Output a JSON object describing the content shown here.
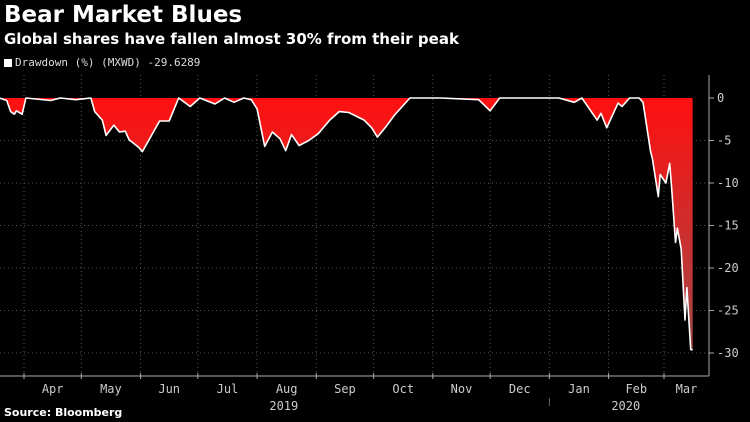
{
  "title": "Bear Market Blues",
  "subtitle": "Global shares have fallen almost 30% from their peak",
  "source": "Source: Bloomberg",
  "chart_data": {
    "type": "area",
    "legend": {
      "label": "Drawdown (%) (MXWD) -29.6289",
      "color": "#ffffff",
      "position": "top-left"
    },
    "series": [
      {
        "name": "Drawdown (%) (MXWD)",
        "fill_color_top": "#ff1010",
        "fill_color_bottom": "#a04848",
        "line_color": "#ffffff",
        "points": [
          [
            "2019-03-19",
            0
          ],
          [
            "2019-03-23",
            -0.3
          ],
          [
            "2019-03-25",
            -1.6
          ],
          [
            "2019-03-27",
            -1.9
          ],
          [
            "2019-03-28",
            -1.5
          ],
          [
            "2019-03-31",
            -1.9
          ],
          [
            "2019-04-02",
            0
          ],
          [
            "2019-04-15",
            -0.3
          ],
          [
            "2019-04-20",
            0
          ],
          [
            "2019-04-28",
            -0.2
          ],
          [
            "2019-05-06",
            0
          ],
          [
            "2019-05-08",
            -1.6
          ],
          [
            "2019-05-12",
            -2.6
          ],
          [
            "2019-05-14",
            -4.4
          ],
          [
            "2019-05-18",
            -3.2
          ],
          [
            "2019-05-21",
            -4.0
          ],
          [
            "2019-05-24",
            -3.9
          ],
          [
            "2019-05-26",
            -4.9
          ],
          [
            "2019-05-31",
            -5.8
          ],
          [
            "2019-06-02",
            -6.3
          ],
          [
            "2019-06-06",
            -4.7
          ],
          [
            "2019-06-11",
            -2.7
          ],
          [
            "2019-06-16",
            -2.7
          ],
          [
            "2019-06-21",
            0
          ],
          [
            "2019-06-27",
            -1.0
          ],
          [
            "2019-07-02",
            0
          ],
          [
            "2019-07-10",
            -0.7
          ],
          [
            "2019-07-15",
            0
          ],
          [
            "2019-07-20",
            -0.5
          ],
          [
            "2019-07-25",
            0
          ],
          [
            "2019-07-29",
            -0.2
          ],
          [
            "2019-08-01",
            -1.3
          ],
          [
            "2019-08-05",
            -5.7
          ],
          [
            "2019-08-09",
            -4.0
          ],
          [
            "2019-08-13",
            -4.8
          ],
          [
            "2019-08-16",
            -6.2
          ],
          [
            "2019-08-19",
            -4.3
          ],
          [
            "2019-08-23",
            -5.6
          ],
          [
            "2019-08-28",
            -5.0
          ],
          [
            "2019-09-02",
            -4.2
          ],
          [
            "2019-09-08",
            -2.6
          ],
          [
            "2019-09-13",
            -1.6
          ],
          [
            "2019-09-18",
            -1.7
          ],
          [
            "2019-09-26",
            -2.6
          ],
          [
            "2019-09-30",
            -3.5
          ],
          [
            "2019-10-03",
            -4.6
          ],
          [
            "2019-10-07",
            -3.5
          ],
          [
            "2019-10-12",
            -2.0
          ],
          [
            "2019-10-20",
            0
          ],
          [
            "2019-11-05",
            0
          ],
          [
            "2019-11-25",
            -0.2
          ],
          [
            "2019-12-01",
            -1.5
          ],
          [
            "2019-12-06",
            0
          ],
          [
            "2020-01-06",
            0
          ],
          [
            "2020-01-14",
            -0.5
          ],
          [
            "2020-01-18",
            0
          ],
          [
            "2020-01-26",
            -2.6
          ],
          [
            "2020-01-28",
            -1.8
          ],
          [
            "2020-01-31",
            -3.5
          ],
          [
            "2020-02-06",
            -0.6
          ],
          [
            "2020-02-08",
            -1.0
          ],
          [
            "2020-02-12",
            0
          ],
          [
            "2020-02-17",
            0
          ],
          [
            "2020-02-19",
            -0.5
          ],
          [
            "2020-02-23",
            -6.3
          ],
          [
            "2020-02-24",
            -7.2
          ],
          [
            "2020-02-27",
            -11.6
          ],
          [
            "2020-02-28",
            -9.0
          ],
          [
            "2020-03-02",
            -10.0
          ],
          [
            "2020-03-04",
            -7.7
          ],
          [
            "2020-03-05",
            -10.5
          ],
          [
            "2020-03-07",
            -17.0
          ],
          [
            "2020-03-08",
            -15.3
          ],
          [
            "2020-03-10",
            -17.8
          ],
          [
            "2020-03-12",
            -26.1
          ],
          [
            "2020-03-13",
            -22.3
          ],
          [
            "2020-03-15",
            -29.6
          ],
          [
            "2020-03-16",
            -29.6289
          ]
        ]
      }
    ],
    "x_range": [
      "2019-03-19",
      "2020-03-20"
    ],
    "x_ticks": [
      {
        "label": "Apr",
        "date": "2019-04-01"
      },
      {
        "label": "May",
        "date": "2019-05-01"
      },
      {
        "label": "Jun",
        "date": "2019-06-01"
      },
      {
        "label": "Jul",
        "date": "2019-07-01"
      },
      {
        "label": "Aug",
        "date": "2019-08-01"
      },
      {
        "label": "Sep",
        "date": "2019-09-01"
      },
      {
        "label": "Oct",
        "date": "2019-10-01"
      },
      {
        "label": "Nov",
        "date": "2019-11-01"
      },
      {
        "label": "Dec",
        "date": "2019-12-01"
      },
      {
        "label": "Jan",
        "date": "2020-01-01"
      },
      {
        "label": "Feb",
        "date": "2020-02-01"
      },
      {
        "label": "Mar",
        "date": "2020-03-01"
      }
    ],
    "year_labels": [
      {
        "label": "2019",
        "date": "2019-08-15"
      },
      {
        "label": "2020",
        "date": "2020-02-10"
      }
    ],
    "y_ticks": [
      0,
      -5,
      -10,
      -15,
      -20,
      -25,
      -30
    ],
    "ylim": [
      -32.5,
      4.5
    ],
    "y_axis_side": "right",
    "grid": true
  }
}
